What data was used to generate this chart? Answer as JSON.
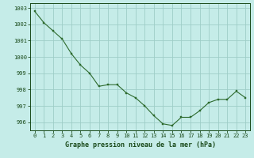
{
  "x": [
    0,
    1,
    2,
    3,
    4,
    5,
    6,
    7,
    8,
    9,
    10,
    11,
    12,
    13,
    14,
    15,
    16,
    17,
    18,
    19,
    20,
    21,
    22,
    23
  ],
  "y": [
    1002.8,
    1002.1,
    1001.6,
    1001.1,
    1000.2,
    999.5,
    999.0,
    998.2,
    998.3,
    998.3,
    997.8,
    997.5,
    997.0,
    996.4,
    995.9,
    995.8,
    996.3,
    996.3,
    996.7,
    997.2,
    997.4,
    997.4,
    997.9,
    997.5
  ],
  "line_color": "#2d6a2d",
  "marker_color": "#2d6a2d",
  "bg_color": "#c5ece8",
  "grid_color": "#9ecdc7",
  "xlabel": "Graphe pression niveau de la mer (hPa)",
  "xlabel_color": "#1a4a1a",
  "tick_color": "#1a4a1a",
  "ylim": [
    995.5,
    1003.3
  ],
  "xlim": [
    -0.5,
    23.5
  ],
  "yticks": [
    996,
    997,
    998,
    999,
    1000,
    1001,
    1002,
    1003
  ],
  "xticks": [
    0,
    1,
    2,
    3,
    4,
    5,
    6,
    7,
    8,
    9,
    10,
    11,
    12,
    13,
    14,
    15,
    16,
    17,
    18,
    19,
    20,
    21,
    22,
    23
  ],
  "tick_fontsize": 5.0,
  "xlabel_fontsize": 6.0
}
